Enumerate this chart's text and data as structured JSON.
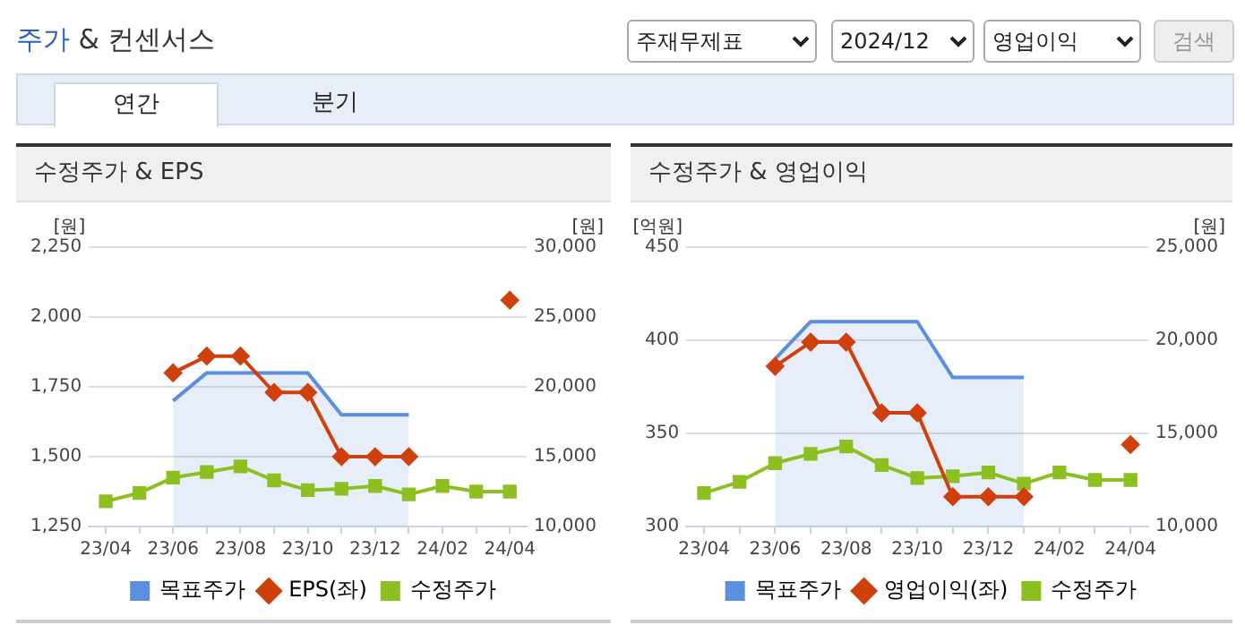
{
  "chart_data": [
    {
      "type": "other",
      "title": "주가 & 컨센서스",
      "annotations": [
        "주재무제표",
        "2024/12",
        "영업이익",
        "검색",
        "연간",
        "분기"
      ]
    },
    {
      "type": "line",
      "title": "수정주가 & EPS",
      "ylabel": "[원]",
      "y2label": "[원]",
      "categories": [
        "23/04",
        null,
        "23/06",
        null,
        "23/08",
        null,
        "23/10",
        null,
        "23/12",
        null,
        "24/02",
        null,
        "24/04"
      ],
      "series": [
        {
          "name": "목표주가",
          "type": "area",
          "axis": "y2",
          "color": "#5b8fe0",
          "marker": "none",
          "values": [
            null,
            null,
            19000,
            21000,
            21000,
            21000,
            21000,
            18000,
            18000,
            18000,
            null,
            null,
            null
          ]
        },
        {
          "name": "EPS(좌)",
          "type": "line",
          "color": "#d0400c",
          "marker": "diamond",
          "values": [
            null,
            null,
            1800,
            1860,
            1860,
            1730,
            1730,
            1500,
            1500,
            1500,
            null,
            null,
            2060
          ]
        },
        {
          "name": "수정주가",
          "type": "line",
          "axis": "y2",
          "color": "#8cc020",
          "marker": "square",
          "values": [
            11800,
            12400,
            13500,
            13900,
            14300,
            13300,
            12600,
            12700,
            12900,
            12300,
            12900,
            12500,
            12500
          ]
        }
      ],
      "ylim": [
        1250,
        2250
      ],
      "yticks": [
        {
          "value": 1250,
          "label": "1,250"
        },
        {
          "value": 1500,
          "label": "1,500"
        },
        {
          "value": 1750,
          "label": "1,750"
        },
        {
          "value": 2000,
          "label": "2,000"
        },
        {
          "value": 2250,
          "label": "2,250"
        }
      ],
      "y2lim": [
        10000,
        30000
      ],
      "y2ticks": [
        {
          "value": 10000,
          "label": "10,000"
        },
        {
          "value": 15000,
          "label": "15,000"
        },
        {
          "value": 20000,
          "label": "20,000"
        },
        {
          "value": 25000,
          "label": "25,000"
        },
        {
          "value": 30000,
          "label": "30,000"
        }
      ],
      "grid": "y",
      "legend": "bottom"
    },
    {
      "type": "line",
      "title": "수정주가 & 영업이익",
      "ylabel": "[억원]",
      "y2label": "[원]",
      "categories": [
        "23/04",
        null,
        "23/06",
        null,
        "23/08",
        null,
        "23/10",
        null,
        "23/12",
        null,
        "24/02",
        null,
        "24/04"
      ],
      "series": [
        {
          "name": "목표주가",
          "type": "area",
          "axis": "y2",
          "color": "#5b8fe0",
          "marker": "none",
          "values": [
            null,
            null,
            19000,
            21000,
            21000,
            21000,
            21000,
            18000,
            18000,
            18000,
            null,
            null,
            null
          ]
        },
        {
          "name": "영업이익(좌)",
          "type": "line",
          "color": "#d0400c",
          "marker": "diamond",
          "values": [
            null,
            null,
            386,
            399,
            399,
            361,
            361,
            316,
            316,
            316,
            null,
            null,
            344
          ]
        },
        {
          "name": "수정주가",
          "type": "line",
          "axis": "y2",
          "color": "#8cc020",
          "marker": "square",
          "values": [
            11800,
            12400,
            13400,
            13900,
            14300,
            13300,
            12600,
            12700,
            12900,
            12300,
            12900,
            12500,
            12500
          ]
        }
      ],
      "ylim": [
        300,
        450
      ],
      "yticks": [
        300,
        350,
        400,
        450
      ],
      "y2lim": [
        10000,
        25000
      ],
      "y2ticks": [
        {
          "value": 10000,
          "label": "10,000"
        },
        {
          "value": 15000,
          "label": "15,000"
        },
        {
          "value": 20000,
          "label": "20,000"
        },
        {
          "value": 25000,
          "label": "25,000"
        }
      ],
      "grid": "y",
      "legend": "bottom"
    }
  ]
}
